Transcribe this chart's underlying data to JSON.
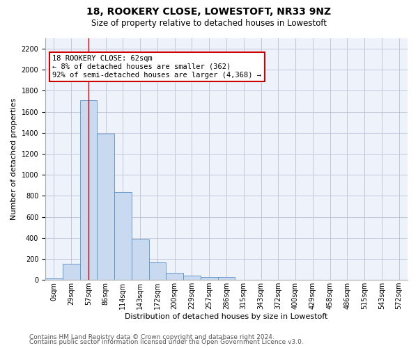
{
  "title": "18, ROOKERY CLOSE, LOWESTOFT, NR33 9NZ",
  "subtitle": "Size of property relative to detached houses in Lowestoft",
  "xlabel": "Distribution of detached houses by size in Lowestoft",
  "ylabel": "Number of detached properties",
  "bin_labels": [
    "0sqm",
    "29sqm",
    "57sqm",
    "86sqm",
    "114sqm",
    "143sqm",
    "172sqm",
    "200sqm",
    "229sqm",
    "257sqm",
    "286sqm",
    "315sqm",
    "343sqm",
    "372sqm",
    "400sqm",
    "429sqm",
    "458sqm",
    "486sqm",
    "515sqm",
    "543sqm",
    "572sqm"
  ],
  "bar_values": [
    15,
    155,
    1710,
    1390,
    835,
    385,
    165,
    65,
    40,
    30,
    30,
    0,
    0,
    0,
    0,
    0,
    0,
    0,
    0,
    0,
    0
  ],
  "bar_color": "#c8d9f0",
  "bar_edge_color": "#5a8fc2",
  "property_line_bin": 2,
  "annotation_text": "18 ROOKERY CLOSE: 62sqm\n← 8% of detached houses are smaller (362)\n92% of semi-detached houses are larger (4,368) →",
  "annotation_box_color": "#ffffff",
  "annotation_box_edge": "#cc0000",
  "ylim": [
    0,
    2300
  ],
  "yticks": [
    0,
    200,
    400,
    600,
    800,
    1000,
    1200,
    1400,
    1600,
    1800,
    2000,
    2200
  ],
  "grid_color": "#c0c8d8",
  "background_color": "#eef2fa",
  "footer1": "Contains HM Land Registry data © Crown copyright and database right 2024.",
  "footer2": "Contains public sector information licensed under the Open Government Licence v3.0.",
  "title_fontsize": 10,
  "subtitle_fontsize": 8.5,
  "xlabel_fontsize": 8,
  "ylabel_fontsize": 8,
  "tick_fontsize": 7,
  "annotation_fontsize": 7.5,
  "footer_fontsize": 6.5
}
